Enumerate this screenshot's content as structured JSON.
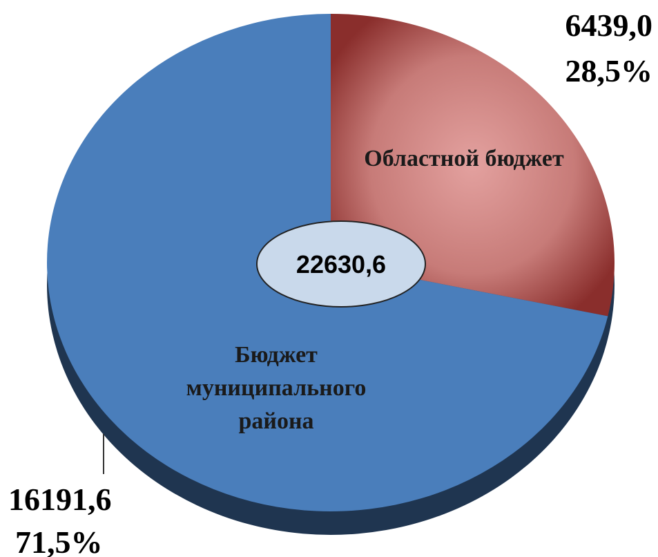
{
  "chart_data": {
    "type": "pie",
    "categories": [
      "Областной бюджет",
      "Бюджет муниципального района"
    ],
    "values": [
      6439.0,
      16191.6
    ],
    "value_labels": [
      "6439,0",
      "16191,6"
    ],
    "percents": [
      28.5,
      71.5
    ],
    "percent_labels": [
      "28,5%",
      "71,5%"
    ],
    "colors": [
      "#b65754",
      "#4a7ebb"
    ],
    "total": 22630.6,
    "total_label": "22630,6"
  }
}
